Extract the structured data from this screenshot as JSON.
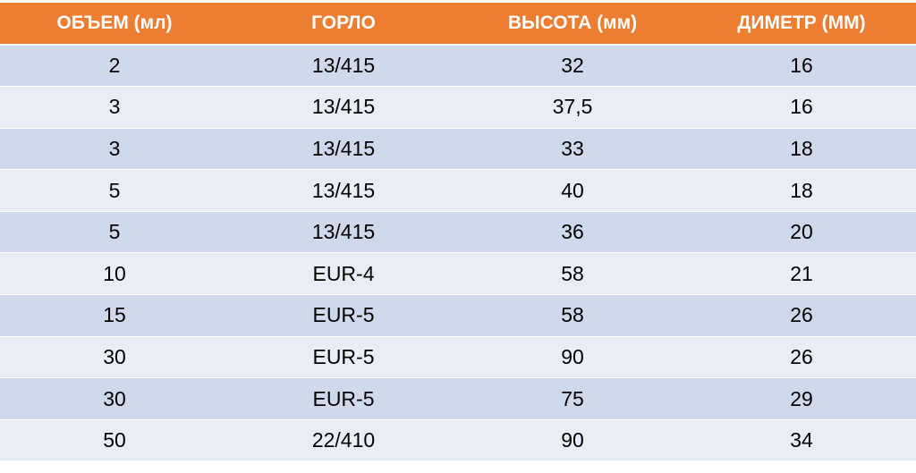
{
  "table": {
    "colors": {
      "header_bg": "#ED7D31",
      "row_dark": "#CFD9EB",
      "row_light": "#E9EDF5",
      "header_text": "#FFFFFF"
    },
    "headers": [
      "ОБЪЕМ (мл)",
      "ГОРЛО",
      "ВЫСОТА (мм)",
      "ДИМЕТР (ММ)"
    ],
    "rows": [
      [
        "2",
        "13/415",
        "32",
        "16"
      ],
      [
        "3",
        "13/415",
        "37,5",
        "16"
      ],
      [
        "3",
        "13/415",
        "33",
        "18"
      ],
      [
        "5",
        "13/415",
        "40",
        "18"
      ],
      [
        "5",
        "13/415",
        "36",
        "20"
      ],
      [
        "10",
        "EUR-4",
        "58",
        "21"
      ],
      [
        "15",
        "EUR-5",
        "58",
        "26"
      ],
      [
        "30",
        "EUR-5",
        "90",
        "26"
      ],
      [
        "30",
        "EUR-5",
        "75",
        "29"
      ],
      [
        "50",
        "22/410",
        "90",
        "34"
      ]
    ]
  }
}
